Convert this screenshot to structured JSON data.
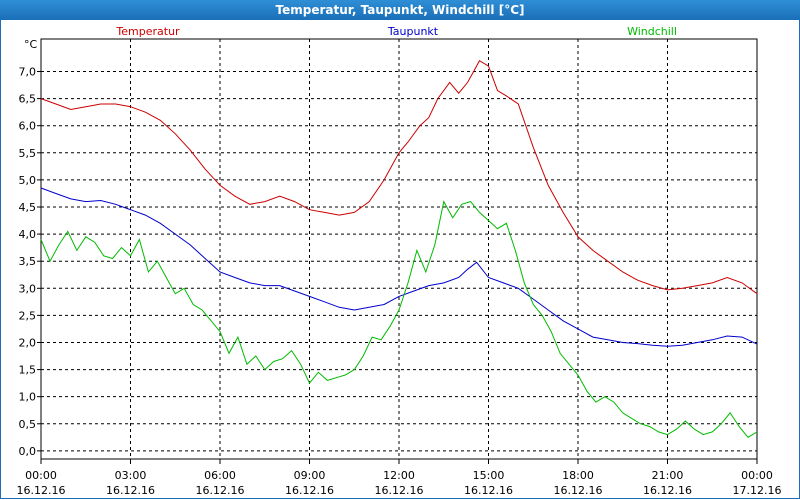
{
  "window": {
    "title": "Temperatur, Taupunkt, Windchill [°C]"
  },
  "chart_data": {
    "type": "line",
    "title": "Temperatur, Taupunkt, Windchill [°C]",
    "ylabel": "°C",
    "ylim": [
      -0.15,
      7.6
    ],
    "xlim": [
      0,
      24
    ],
    "grid": true,
    "yticks": [
      0.0,
      0.5,
      1.0,
      1.5,
      2.0,
      2.5,
      3.0,
      3.5,
      4.0,
      4.5,
      5.0,
      5.5,
      6.0,
      6.5,
      7.0
    ],
    "ytick_labels": [
      "0,0",
      "0,5",
      "1,0",
      "1,5",
      "2,0",
      "2,5",
      "3,0",
      "3,5",
      "4,0",
      "4,5",
      "5,0",
      "5,5",
      "6,0",
      "6,5",
      "7,0"
    ],
    "xticks": [
      {
        "x": 0,
        "time": "00:00",
        "date": "16.12.16"
      },
      {
        "x": 3,
        "time": "03:00",
        "date": "16.12.16"
      },
      {
        "x": 6,
        "time": "06:00",
        "date": "16.12.16"
      },
      {
        "x": 9,
        "time": "09:00",
        "date": "16.12.16"
      },
      {
        "x": 12,
        "time": "12:00",
        "date": "16.12.16"
      },
      {
        "x": 15,
        "time": "15:00",
        "date": "16.12.16"
      },
      {
        "x": 18,
        "time": "18:00",
        "date": "16.12.16"
      },
      {
        "x": 21,
        "time": "21:00",
        "date": "16.12.16"
      },
      {
        "x": 24,
        "time": "00:00",
        "date": "17.12.16"
      }
    ],
    "series": [
      {
        "name": "Temperatur",
        "color": "#cc0000",
        "x": [
          0,
          0.5,
          1,
          1.5,
          2,
          2.5,
          3,
          3.5,
          4,
          4.5,
          5,
          5.5,
          6,
          6.5,
          7,
          7.5,
          8,
          8.5,
          9,
          9.5,
          10,
          10.5,
          11,
          11.5,
          12,
          12.3,
          12.7,
          13,
          13.3,
          13.7,
          14,
          14.3,
          14.5,
          14.7,
          15,
          15.3,
          15.6,
          16,
          16.5,
          17,
          17.5,
          18,
          18.5,
          19,
          19.5,
          20,
          20.5,
          21,
          21.5,
          22,
          22.5,
          23,
          23.5,
          24
        ],
        "values": [
          6.5,
          6.4,
          6.3,
          6.35,
          6.4,
          6.4,
          6.35,
          6.25,
          6.1,
          5.85,
          5.55,
          5.2,
          4.9,
          4.7,
          4.55,
          4.6,
          4.7,
          4.6,
          4.45,
          4.4,
          4.35,
          4.4,
          4.6,
          5.0,
          5.5,
          5.7,
          6.0,
          6.15,
          6.5,
          6.8,
          6.6,
          6.8,
          7.0,
          7.2,
          7.1,
          6.65,
          6.55,
          6.4,
          5.6,
          4.9,
          4.4,
          3.95,
          3.7,
          3.5,
          3.3,
          3.15,
          3.05,
          2.97,
          3.0,
          3.05,
          3.1,
          3.2,
          3.1,
          2.9
        ]
      },
      {
        "name": "Taupunkt",
        "color": "#0000cc",
        "x": [
          0,
          0.5,
          1,
          1.5,
          2,
          2.5,
          3,
          3.5,
          4,
          4.5,
          5,
          5.5,
          6,
          6.5,
          7,
          7.5,
          8,
          8.5,
          9,
          9.5,
          10,
          10.5,
          11,
          11.5,
          12,
          12.5,
          13,
          13.5,
          14,
          14.3,
          14.6,
          15,
          15.5,
          16,
          16.5,
          17,
          17.5,
          18,
          18.5,
          19,
          19.5,
          20,
          20.5,
          21,
          21.5,
          22,
          22.5,
          23,
          23.5,
          24
        ],
        "values": [
          4.85,
          4.75,
          4.65,
          4.6,
          4.62,
          4.55,
          4.45,
          4.35,
          4.2,
          4.0,
          3.8,
          3.55,
          3.3,
          3.2,
          3.1,
          3.05,
          3.05,
          2.95,
          2.85,
          2.75,
          2.65,
          2.6,
          2.65,
          2.7,
          2.85,
          2.95,
          3.05,
          3.1,
          3.2,
          3.35,
          3.48,
          3.2,
          3.1,
          3.0,
          2.8,
          2.6,
          2.4,
          2.25,
          2.1,
          2.05,
          2.0,
          1.98,
          1.95,
          1.93,
          1.95,
          2.0,
          2.05,
          2.12,
          2.1,
          1.97
        ]
      },
      {
        "name": "Windchill",
        "color": "#00bb00",
        "x": [
          0,
          0.3,
          0.6,
          0.9,
          1.2,
          1.5,
          1.8,
          2.1,
          2.4,
          2.7,
          3.0,
          3.3,
          3.6,
          3.9,
          4.2,
          4.5,
          4.8,
          5.1,
          5.4,
          5.7,
          6.0,
          6.3,
          6.6,
          6.9,
          7.2,
          7.5,
          7.8,
          8.1,
          8.4,
          8.7,
          9.0,
          9.3,
          9.6,
          9.9,
          10.2,
          10.5,
          10.8,
          11.1,
          11.4,
          11.7,
          12.0,
          12.3,
          12.6,
          12.9,
          13.2,
          13.5,
          13.8,
          14.1,
          14.4,
          14.7,
          15.0,
          15.3,
          15.6,
          15.9,
          16.2,
          16.5,
          16.8,
          17.1,
          17.4,
          17.7,
          18.0,
          18.3,
          18.6,
          18.9,
          19.2,
          19.5,
          19.8,
          20.1,
          20.4,
          20.7,
          21.0,
          21.3,
          21.6,
          21.9,
          22.2,
          22.5,
          22.8,
          23.1,
          23.4,
          23.7,
          24.0
        ],
        "values": [
          3.9,
          3.5,
          3.8,
          4.05,
          3.7,
          3.95,
          3.85,
          3.6,
          3.55,
          3.75,
          3.6,
          3.9,
          3.3,
          3.5,
          3.2,
          2.9,
          3.0,
          2.7,
          2.6,
          2.4,
          2.2,
          1.8,
          2.1,
          1.6,
          1.75,
          1.5,
          1.65,
          1.7,
          1.85,
          1.6,
          1.25,
          1.45,
          1.3,
          1.35,
          1.4,
          1.5,
          1.75,
          2.1,
          2.05,
          2.3,
          2.6,
          3.1,
          3.7,
          3.3,
          3.8,
          4.6,
          4.3,
          4.55,
          4.6,
          4.4,
          4.25,
          4.1,
          4.2,
          3.7,
          3.1,
          2.7,
          2.5,
          2.2,
          1.8,
          1.6,
          1.4,
          1.1,
          0.9,
          1.0,
          0.9,
          0.7,
          0.6,
          0.5,
          0.45,
          0.35,
          0.3,
          0.4,
          0.55,
          0.4,
          0.3,
          0.35,
          0.5,
          0.7,
          0.45,
          0.25,
          0.35
        ]
      }
    ]
  }
}
